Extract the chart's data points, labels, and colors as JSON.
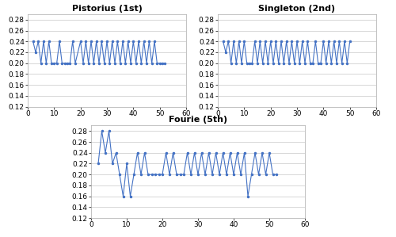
{
  "title_a": "Pistorius (1st)",
  "title_b": "Singleton (2nd)",
  "title_c": "Fourie (5th)",
  "ylim": [
    0.12,
    0.29
  ],
  "yticks": [
    0.12,
    0.14,
    0.16,
    0.18,
    0.2,
    0.22,
    0.24,
    0.26,
    0.28
  ],
  "xlim_ab": [
    0,
    60
  ],
  "xticks_ab": [
    0,
    10,
    20,
    30,
    40,
    50,
    60
  ],
  "xlim_c": [
    0,
    60
  ],
  "xticks_c": [
    0,
    10,
    20,
    30,
    40,
    50,
    60
  ],
  "line_color": "#4472C4",
  "marker": ".",
  "marker_size": 3,
  "line_width": 0.8,
  "pistorius_y": [
    0.24,
    0.22,
    0.24,
    0.2,
    0.24,
    0.2,
    0.24,
    0.2,
    0.2,
    0.2,
    0.24,
    0.2,
    0.2,
    0.2,
    0.2,
    0.24,
    0.2,
    0.24,
    0.2,
    0.24,
    0.2,
    0.24,
    0.2,
    0.24,
    0.2,
    0.24,
    0.2,
    0.24,
    0.2,
    0.24,
    0.2,
    0.24,
    0.2,
    0.24,
    0.2,
    0.24,
    0.2,
    0.24,
    0.2,
    0.24,
    0.2,
    0.24,
    0.2,
    0.24,
    0.2,
    0.24,
    0.2,
    0.2,
    0.2,
    0.2
  ],
  "pistorius_x": [
    2,
    3,
    4,
    5,
    6,
    7,
    8,
    9,
    10,
    11,
    12,
    13,
    14,
    15,
    16,
    17,
    18,
    20,
    21,
    22,
    23,
    24,
    25,
    26,
    27,
    28,
    29,
    30,
    31,
    32,
    33,
    34,
    35,
    36,
    37,
    38,
    39,
    40,
    41,
    42,
    43,
    44,
    45,
    46,
    47,
    48,
    49,
    50,
    51,
    52
  ],
  "singleton_y": [
    0.24,
    0.22,
    0.24,
    0.2,
    0.24,
    0.2,
    0.24,
    0.2,
    0.24,
    0.2,
    0.2,
    0.2,
    0.24,
    0.2,
    0.24,
    0.2,
    0.24,
    0.2,
    0.24,
    0.2,
    0.24,
    0.2,
    0.24,
    0.2,
    0.24,
    0.2,
    0.24,
    0.2,
    0.24,
    0.2,
    0.24,
    0.2,
    0.24,
    0.2,
    0.2,
    0.24,
    0.2,
    0.2,
    0.24,
    0.2,
    0.24,
    0.2,
    0.24,
    0.2,
    0.24,
    0.2,
    0.24,
    0.2,
    0.24
  ],
  "singleton_x": [
    2,
    3,
    4,
    5,
    6,
    7,
    8,
    9,
    10,
    11,
    12,
    13,
    14,
    15,
    16,
    17,
    18,
    19,
    20,
    21,
    22,
    23,
    24,
    25,
    26,
    27,
    28,
    29,
    30,
    31,
    32,
    33,
    34,
    35,
    36,
    37,
    38,
    39,
    40,
    41,
    42,
    43,
    44,
    45,
    46,
    47,
    48,
    49,
    50
  ],
  "fourie_y": [
    0.22,
    0.28,
    0.24,
    0.28,
    0.22,
    0.24,
    0.2,
    0.16,
    0.22,
    0.16,
    0.2,
    0.24,
    0.2,
    0.24,
    0.2,
    0.2,
    0.2,
    0.2,
    0.2,
    0.24,
    0.2,
    0.24,
    0.2,
    0.2,
    0.2,
    0.24,
    0.2,
    0.24,
    0.2,
    0.24,
    0.2,
    0.24,
    0.2,
    0.24,
    0.2,
    0.24,
    0.2,
    0.24,
    0.2,
    0.24,
    0.2,
    0.24,
    0.16,
    0.2,
    0.24,
    0.2,
    0.24,
    0.2,
    0.24,
    0.2,
    0.2
  ],
  "fourie_x": [
    2,
    3,
    4,
    5,
    6,
    7,
    8,
    9,
    10,
    11,
    12,
    13,
    14,
    15,
    16,
    17,
    18,
    19,
    20,
    21,
    22,
    23,
    24,
    25,
    26,
    27,
    28,
    29,
    30,
    31,
    32,
    33,
    34,
    35,
    36,
    37,
    38,
    39,
    40,
    41,
    42,
    43,
    44,
    45,
    46,
    47,
    48,
    49,
    50,
    51,
    52
  ],
  "background_color": "#ffffff",
  "grid_color": "#c8c8c8",
  "title_fontsize": 8,
  "tick_fontsize": 6.5,
  "spine_color": "#aaaaaa"
}
